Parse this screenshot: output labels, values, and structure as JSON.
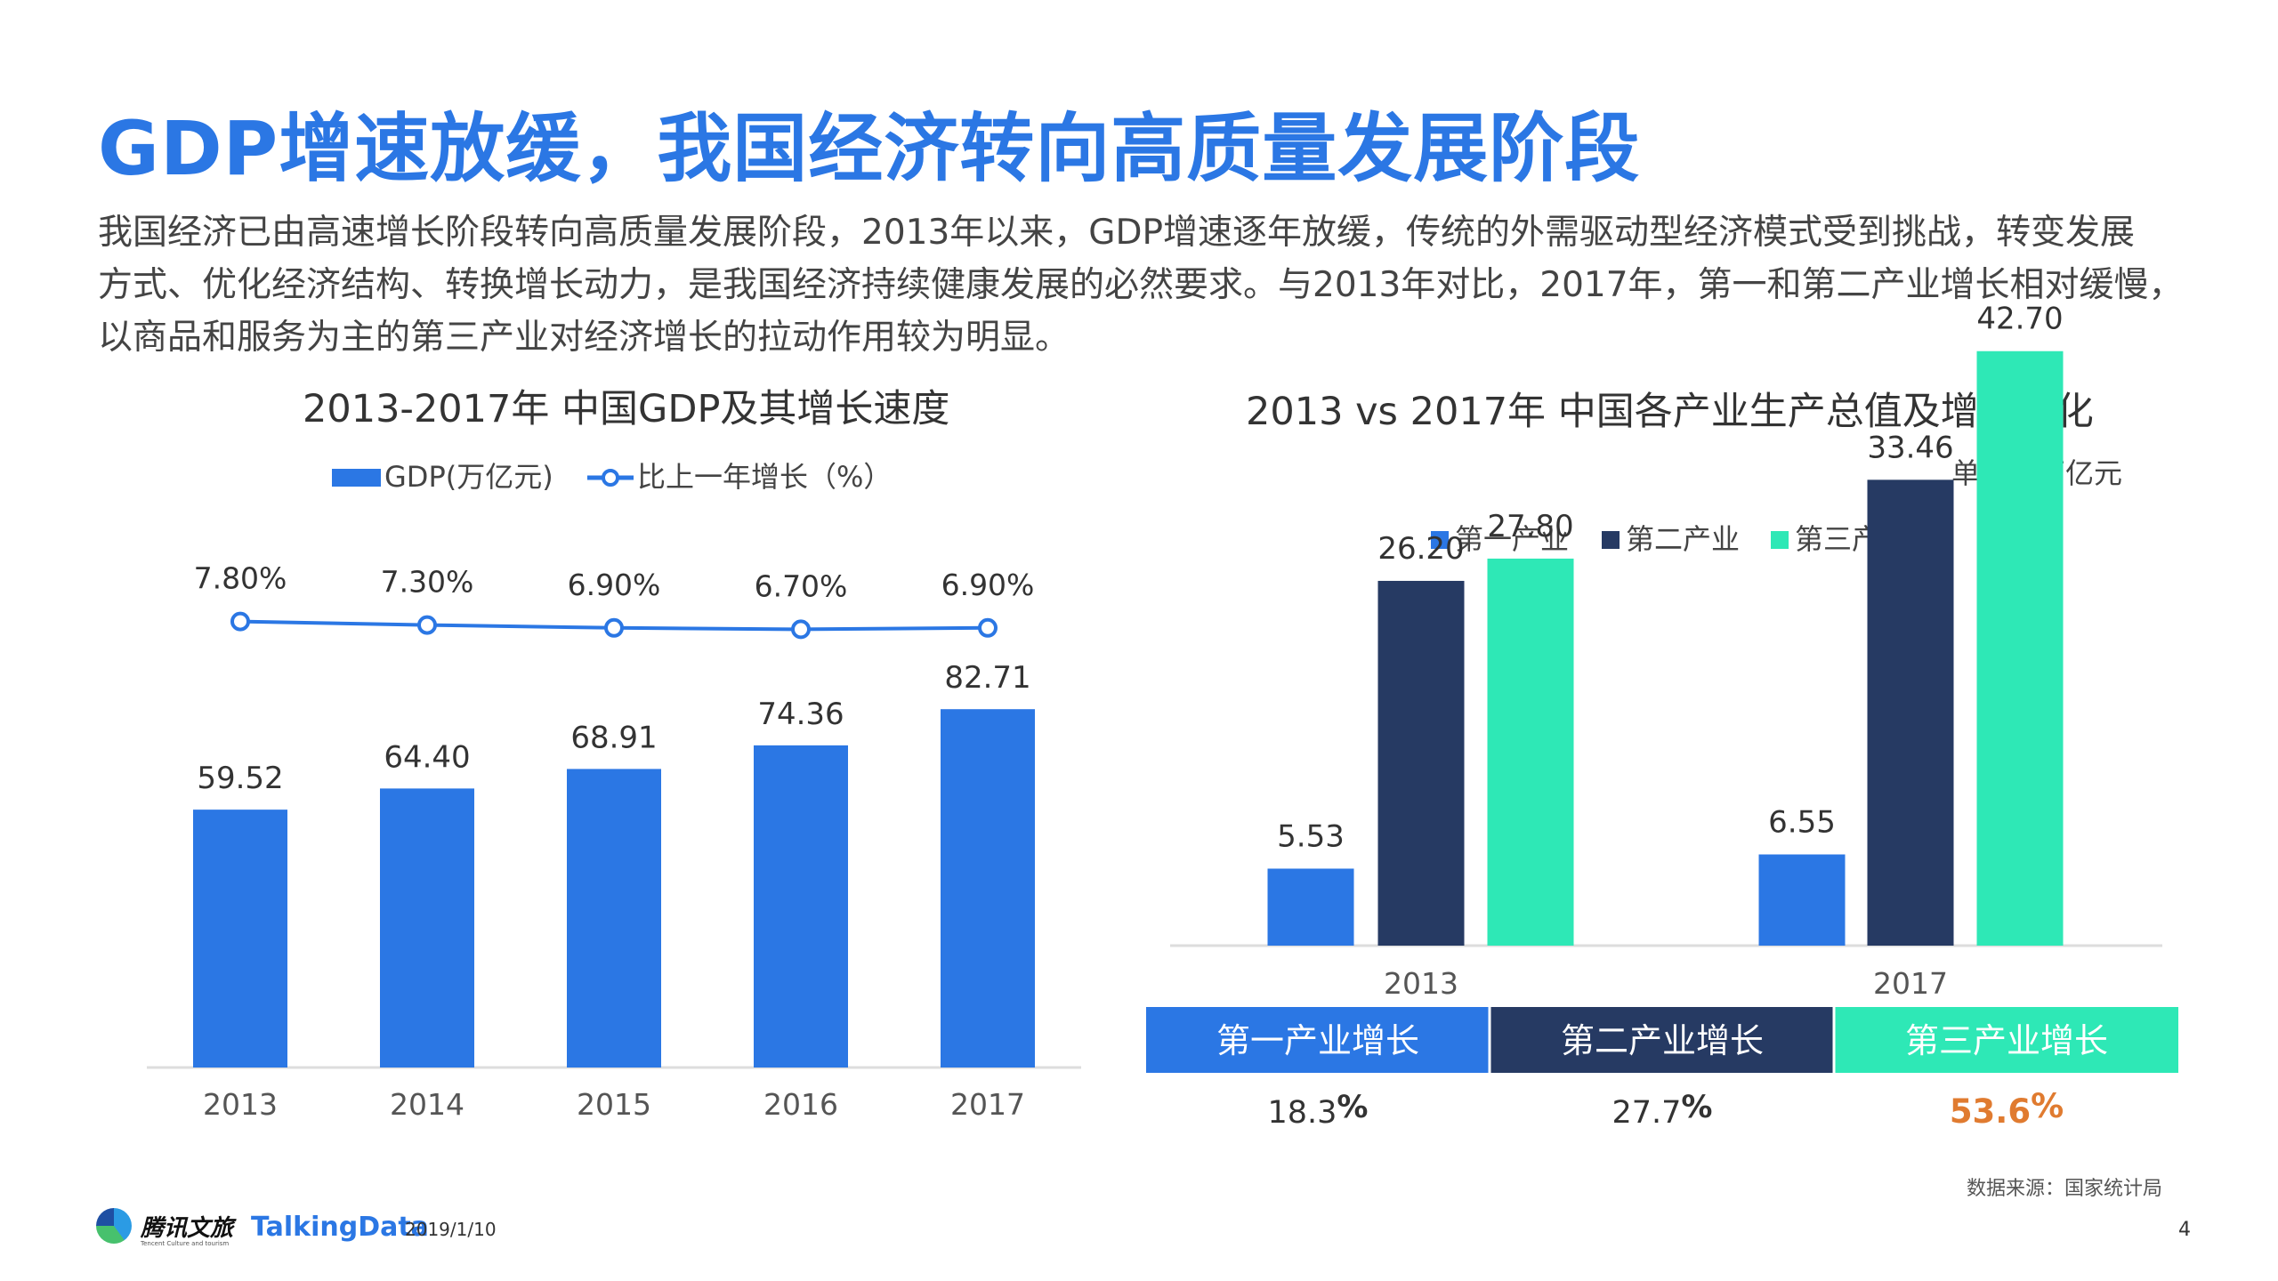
{
  "header": {
    "title": "GDP增速放缓，我国经济转向高质量发展阶段",
    "intro_lines": [
      "我国经济已由高速增长阶段转向高质量发展阶段，2013年以来，GDP增速逐年放缓，传统的外需驱动型经济模式受到挑战，转变发展",
      "方式、优化经济结构、转换增长动力，是我国经济持续健康发展的必然要求。与2013年对比，2017年，第一和第二产业增长相对缓慢，",
      "以商品和服务为主的第三产业对经济增长的拉动作用较为明显。"
    ]
  },
  "chart_data": [
    {
      "type": "bar",
      "title": "2013-2017年 中国GDP及其增长速度",
      "categories": [
        "2013",
        "2014",
        "2015",
        "2016",
        "2017"
      ],
      "series": [
        {
          "name": "GDP(万亿元)",
          "type": "bar",
          "values": [
            59.52,
            64.4,
            68.91,
            74.36,
            82.71
          ],
          "value_labels": [
            "59.52",
            "64.40",
            "68.91",
            "74.36",
            "82.71"
          ],
          "color": "#2b77e4"
        },
        {
          "name": "比上一年增长（%）",
          "type": "line",
          "values": [
            7.8,
            7.3,
            6.9,
            6.7,
            6.9
          ],
          "value_labels": [
            "7.80%",
            "7.30%",
            "6.90%",
            "6.70%",
            "6.90%"
          ],
          "color": "#2b77e4"
        }
      ],
      "legend_position": "top"
    },
    {
      "type": "bar",
      "title": "2013 vs 2017年 中国各产业生产总值及增速变化",
      "unit_label": "单位：万亿元",
      "categories": [
        "2013",
        "2017"
      ],
      "series": [
        {
          "name": "第一产业",
          "values": [
            5.53,
            6.55
          ],
          "value_labels": [
            "5.53",
            "6.55"
          ],
          "color": "#2b77e4"
        },
        {
          "name": "第二产业",
          "values": [
            26.2,
            33.46
          ],
          "value_labels": [
            "26.20",
            "33.46"
          ],
          "color": "#263a63"
        },
        {
          "name": "第三产业",
          "values": [
            27.8,
            42.7
          ],
          "value_labels": [
            "27.80",
            "42.70"
          ],
          "color": "#2ee8b6"
        }
      ],
      "legend_position": "top",
      "growth_table": {
        "headers": [
          "第一产业增长",
          "第二产业增长",
          "第三产业增长"
        ],
        "values": [
          "18.3",
          "27.7",
          "53.6"
        ],
        "unit": "%",
        "header_colors": [
          "#2b77e4",
          "#263a63",
          "#2ee8b6"
        ],
        "highlight_color": "#e07b30"
      }
    }
  ],
  "footer": {
    "logo_tencent": "腾讯文旅",
    "logo_tencent_sub": "Tencent Culture and tourism",
    "logo_talkingdata": "TalkingData",
    "date": "2019/1/10",
    "source": "数据来源：国家统计局",
    "page": "4"
  }
}
